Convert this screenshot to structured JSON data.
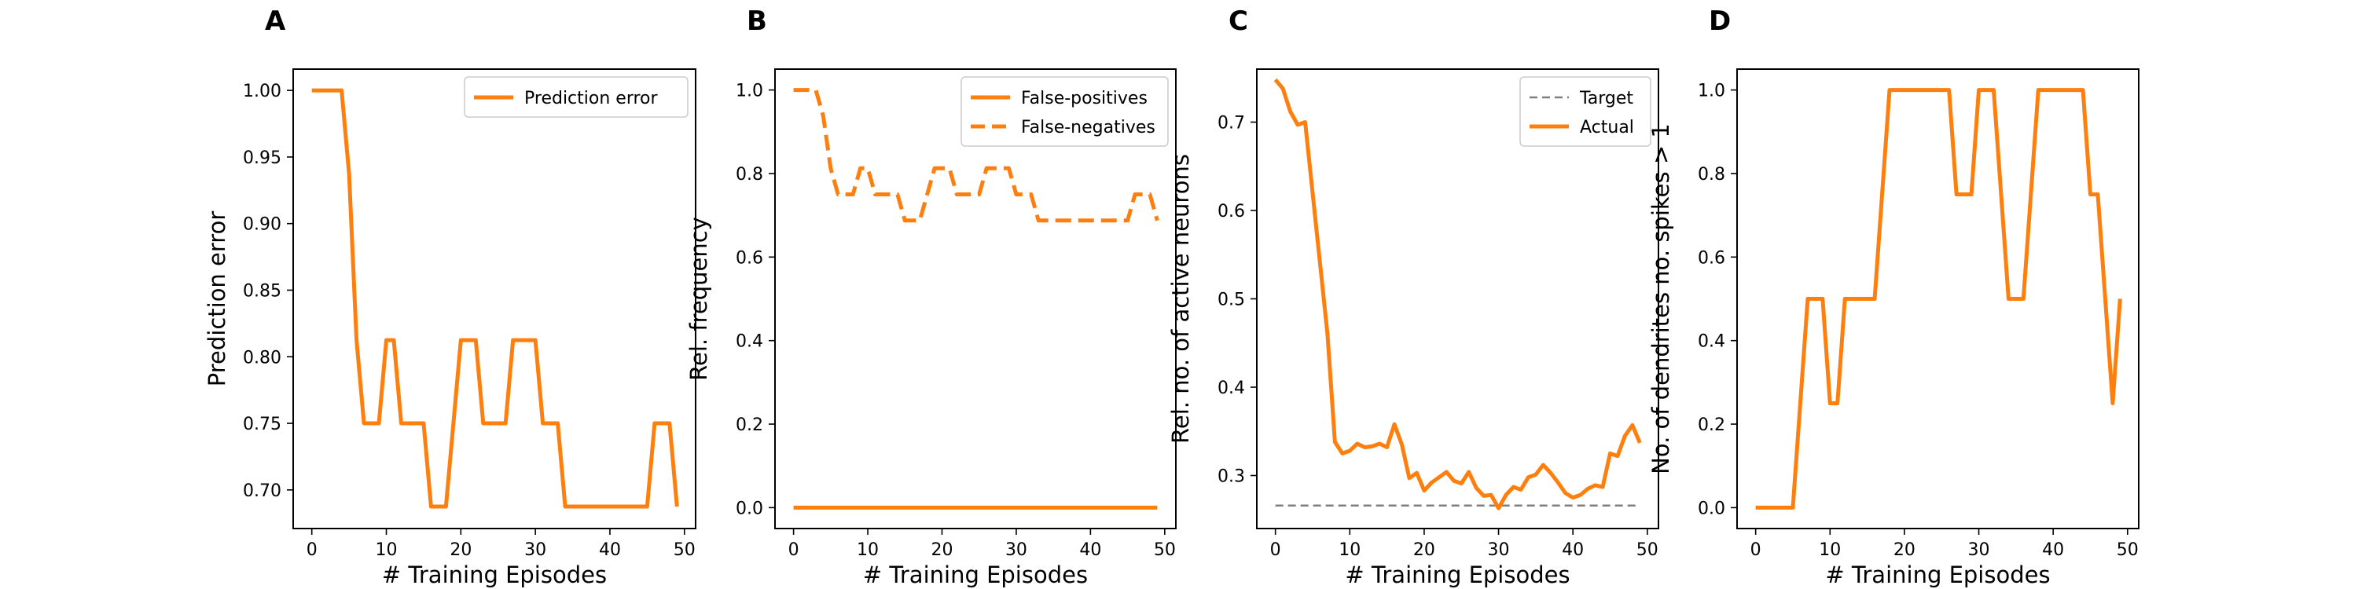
{
  "chart_data": [
    {
      "panel": "A",
      "type": "line",
      "xlabel": "# Training Episodes",
      "ylabel": "Prediction error",
      "xlim": [
        -2.5,
        51.5
      ],
      "ylim": [
        0.671,
        1.016
      ],
      "xticks": [
        0,
        10,
        20,
        30,
        40,
        50
      ],
      "yticks": [
        0.7,
        0.75,
        0.8,
        0.85,
        0.9,
        0.95,
        1.0
      ],
      "ytick_decimals": 2,
      "legend": {
        "position": "top-right"
      },
      "series": [
        {
          "name": "Prediction error",
          "style": "solid",
          "color": "#ff7f0e",
          "values": [
            1.0,
            1.0,
            1.0,
            1.0,
            1.0,
            0.9375,
            0.8125,
            0.75,
            0.75,
            0.75,
            0.8125,
            0.8125,
            0.75,
            0.75,
            0.75,
            0.75,
            0.6875,
            0.6875,
            0.6875,
            0.75,
            0.8125,
            0.8125,
            0.8125,
            0.75,
            0.75,
            0.75,
            0.75,
            0.8125,
            0.8125,
            0.8125,
            0.8125,
            0.75,
            0.75,
            0.75,
            0.6875,
            0.6875,
            0.6875,
            0.6875,
            0.6875,
            0.6875,
            0.6875,
            0.6875,
            0.6875,
            0.6875,
            0.6875,
            0.6875,
            0.75,
            0.75,
            0.75,
            0.6875
          ]
        }
      ]
    },
    {
      "panel": "B",
      "type": "line",
      "xlabel": "# Training Episodes",
      "ylabel": "Rel. frequency",
      "xlim": [
        -2.5,
        51.5
      ],
      "ylim": [
        -0.05,
        1.05
      ],
      "xticks": [
        0,
        10,
        20,
        30,
        40,
        50
      ],
      "yticks": [
        0.0,
        0.2,
        0.4,
        0.6,
        0.8,
        1.0
      ],
      "ytick_decimals": 1,
      "legend": {
        "position": "top-right"
      },
      "series": [
        {
          "name": "False-positives",
          "style": "solid",
          "color": "#ff7f0e",
          "values": [
            0,
            0,
            0,
            0,
            0,
            0,
            0,
            0,
            0,
            0,
            0,
            0,
            0,
            0,
            0,
            0,
            0,
            0,
            0,
            0,
            0,
            0,
            0,
            0,
            0,
            0,
            0,
            0,
            0,
            0,
            0,
            0,
            0,
            0,
            0,
            0,
            0,
            0,
            0,
            0,
            0,
            0,
            0,
            0,
            0,
            0,
            0,
            0,
            0,
            0
          ]
        },
        {
          "name": "False-negatives",
          "style": "dashed",
          "color": "#ff7f0e",
          "values": [
            1.0,
            1.0,
            1.0,
            1.0,
            0.9375,
            0.8125,
            0.75,
            0.75,
            0.75,
            0.8125,
            0.8125,
            0.75,
            0.75,
            0.75,
            0.75,
            0.6875,
            0.6875,
            0.6875,
            0.75,
            0.8125,
            0.8125,
            0.8125,
            0.75,
            0.75,
            0.75,
            0.75,
            0.8125,
            0.8125,
            0.8125,
            0.8125,
            0.75,
            0.75,
            0.75,
            0.6875,
            0.6875,
            0.6875,
            0.6875,
            0.6875,
            0.6875,
            0.6875,
            0.6875,
            0.6875,
            0.6875,
            0.6875,
            0.6875,
            0.6875,
            0.75,
            0.75,
            0.75,
            0.6875
          ]
        }
      ]
    },
    {
      "panel": "C",
      "type": "line",
      "xlabel": "# Training Episodes",
      "ylabel": "Rel. no. of active neurons",
      "xlim": [
        -2.5,
        51.5
      ],
      "ylim": [
        0.24,
        0.76
      ],
      "xticks": [
        0,
        10,
        20,
        30,
        40,
        50
      ],
      "yticks": [
        0.3,
        0.4,
        0.5,
        0.6,
        0.7
      ],
      "ytick_decimals": 1,
      "legend": {
        "position": "top-right"
      },
      "series": [
        {
          "name": "Target",
          "style": "dashed",
          "color": "#7f7f7f",
          "values": [
            0.266,
            0.266,
            0.266,
            0.266,
            0.266,
            0.266,
            0.266,
            0.266,
            0.266,
            0.266,
            0.266,
            0.266,
            0.266,
            0.266,
            0.266,
            0.266,
            0.266,
            0.266,
            0.266,
            0.266,
            0.266,
            0.266,
            0.266,
            0.266,
            0.266,
            0.266,
            0.266,
            0.266,
            0.266,
            0.266,
            0.266,
            0.266,
            0.266,
            0.266,
            0.266,
            0.266,
            0.266,
            0.266,
            0.266,
            0.266,
            0.266,
            0.266,
            0.266,
            0.266,
            0.266,
            0.266,
            0.266,
            0.266,
            0.266,
            0.266
          ]
        },
        {
          "name": "Actual",
          "style": "solid",
          "color": "#ff7f0e",
          "values": [
            0.748,
            0.738,
            0.712,
            0.697,
            0.7,
            0.62,
            0.54,
            0.46,
            0.338,
            0.325,
            0.328,
            0.336,
            0.332,
            0.333,
            0.336,
            0.332,
            0.358,
            0.335,
            0.297,
            0.303,
            0.283,
            0.292,
            0.298,
            0.304,
            0.294,
            0.291,
            0.304,
            0.286,
            0.277,
            0.278,
            0.263,
            0.278,
            0.287,
            0.284,
            0.298,
            0.301,
            0.312,
            0.303,
            0.292,
            0.28,
            0.275,
            0.278,
            0.285,
            0.289,
            0.287,
            0.325,
            0.322,
            0.345,
            0.357,
            0.337
          ]
        }
      ]
    },
    {
      "panel": "D",
      "type": "line",
      "xlabel": "# Training Episodes",
      "ylabel": "No. of dendrites no. spikes > 1",
      "xlim": [
        -2.5,
        51.5
      ],
      "ylim": [
        -0.05,
        1.05
      ],
      "xticks": [
        0,
        10,
        20,
        30,
        40,
        50
      ],
      "yticks": [
        0.0,
        0.2,
        0.4,
        0.6,
        0.8,
        1.0
      ],
      "ytick_decimals": 1,
      "legend": null,
      "series": [
        {
          "name": "",
          "style": "solid",
          "color": "#ff7f0e",
          "values": [
            0,
            0,
            0,
            0,
            0,
            0,
            0.25,
            0.5,
            0.5,
            0.5,
            0.25,
            0.25,
            0.5,
            0.5,
            0.5,
            0.5,
            0.5,
            0.75,
            1.0,
            1.0,
            1.0,
            1.0,
            1.0,
            1.0,
            1.0,
            1.0,
            1.0,
            0.75,
            0.75,
            0.75,
            1.0,
            1.0,
            1.0,
            0.75,
            0.5,
            0.5,
            0.5,
            0.75,
            1.0,
            1.0,
            1.0,
            1.0,
            1.0,
            1.0,
            1.0,
            0.75,
            0.75,
            0.5,
            0.25,
            0.5
          ]
        }
      ]
    }
  ]
}
